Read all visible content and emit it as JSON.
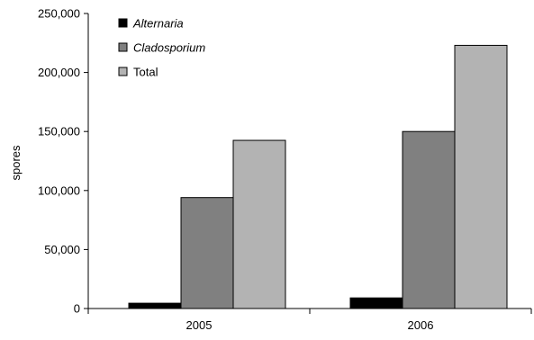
{
  "chart_data": {
    "type": "bar",
    "title": "",
    "xlabel": "",
    "ylabel": "spores",
    "categories": [
      "2005",
      "2006"
    ],
    "ylim": [
      0,
      250000
    ],
    "yticks": [
      0,
      50000,
      100000,
      150000,
      200000,
      250000
    ],
    "ytick_labels": [
      "0",
      "50,000",
      "100,000",
      "150,000",
      "200,000",
      "250,000"
    ],
    "grid": false,
    "legend_position": "top-left",
    "series": [
      {
        "name": "Alternaria",
        "values": [
          4500,
          9000
        ],
        "color": "#000000",
        "italic": true
      },
      {
        "name": "Cladosporium",
        "values": [
          94000,
          150000
        ],
        "color": "#808080",
        "italic": true
      },
      {
        "name": "Total",
        "values": [
          142500,
          223000
        ],
        "color": "#b3b3b3",
        "italic": false
      }
    ]
  }
}
